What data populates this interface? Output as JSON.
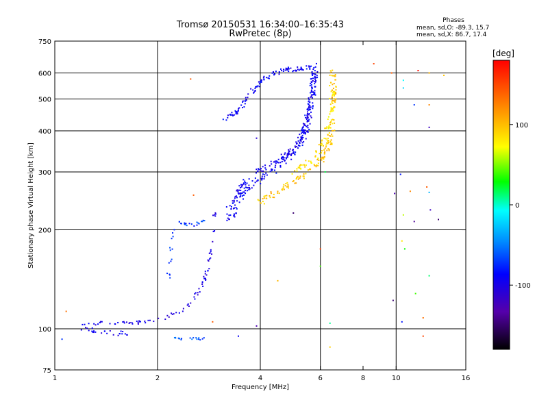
{
  "chart_data": {
    "type": "scatter",
    "title": "Tromsø 20150531 16:34:00–16:35:43",
    "subtitle": "RwPretec (8p)",
    "stats": {
      "heading": "Phases",
      "line_o": "mean, sd,O:  -89.3, 15.7",
      "line_x": "mean, sd,X:  86.7, 17.4"
    },
    "xlabel": "Frequency [MHz]",
    "ylabel": "Stationary phase Virtual Height [km]",
    "x_scale": "log",
    "y_scale": "log",
    "xlim": [
      1,
      16
    ],
    "ylim": [
      75,
      750
    ],
    "x_ticks": [
      1,
      2,
      4,
      6,
      8,
      10,
      16
    ],
    "x_tick_labels": [
      "1",
      "2",
      "4",
      "6",
      "8",
      "10",
      "16"
    ],
    "x_gridlines": [
      2,
      4,
      6,
      10
    ],
    "y_ticks": [
      75,
      100,
      200,
      300,
      400,
      500,
      600,
      750
    ],
    "y_tick_labels": [
      "75",
      "100",
      "200",
      "300",
      "400",
      "500",
      "600",
      "750"
    ],
    "y_gridlines": [
      100,
      200,
      300,
      400,
      500,
      600
    ],
    "grid": true,
    "colorbar": {
      "label": "[deg]",
      "range": [
        -180,
        180
      ],
      "ticks": [
        100,
        0,
        -100
      ],
      "tick_labels": [
        "100",
        "0",
        "-100"
      ]
    },
    "o_mode": [
      {
        "path": [
          [
            1.15,
            103
          ],
          [
            1.4,
            104
          ],
          [
            1.7,
            104
          ],
          [
            1.95,
            106
          ],
          [
            2.1,
            108
          ],
          [
            2.3,
            112
          ],
          [
            2.5,
            120
          ],
          [
            2.7,
            135
          ],
          [
            2.82,
            155
          ],
          [
            2.9,
            185
          ],
          [
            2.95,
            230
          ]
        ],
        "phase": -100,
        "count": 90,
        "spread": 0.012
      },
      {
        "path": [
          [
            1.2,
            100
          ],
          [
            1.45,
            98
          ],
          [
            1.65,
            96
          ]
        ],
        "phase": -95,
        "count": 25,
        "spread": 0.018
      },
      {
        "path": [
          [
            3.25,
            215
          ],
          [
            3.4,
            245
          ],
          [
            3.8,
            275
          ],
          [
            4.3,
            300
          ],
          [
            4.8,
            330
          ],
          [
            5.2,
            360
          ],
          [
            5.5,
            420
          ],
          [
            5.7,
            520
          ],
          [
            5.75,
            600
          ]
        ],
        "phase": -90,
        "count": 200,
        "spread": 0.025
      },
      {
        "path": [
          [
            3.2,
            230
          ],
          [
            3.5,
            270
          ],
          [
            3.9,
            300
          ],
          [
            4.4,
            320
          ],
          [
            4.9,
            345
          ],
          [
            5.3,
            380
          ],
          [
            5.6,
            460
          ],
          [
            5.78,
            640
          ]
        ],
        "phase": -95,
        "count": 150,
        "spread": 0.018
      },
      {
        "path": [
          [
            3.15,
            430
          ],
          [
            3.5,
            470
          ],
          [
            3.8,
            530
          ],
          [
            4.1,
            580
          ],
          [
            4.6,
            610
          ],
          [
            5.2,
            620
          ],
          [
            5.7,
            625
          ]
        ],
        "phase": -90,
        "count": 110,
        "spread": 0.015
      },
      {
        "path": [
          [
            2.3,
            210
          ],
          [
            2.55,
            205
          ],
          [
            2.75,
            215
          ]
        ],
        "phase": -70,
        "count": 20,
        "spread": 0.012
      },
      {
        "path": [
          [
            2.2,
            94
          ],
          [
            2.45,
            93
          ],
          [
            2.75,
            93
          ]
        ],
        "phase": -60,
        "count": 18,
        "spread": 0.01
      },
      {
        "path": [
          [
            2.15,
            140
          ],
          [
            2.2,
            175
          ],
          [
            2.25,
            200
          ]
        ],
        "phase": -65,
        "count": 14,
        "spread": 0.015
      }
    ],
    "x_mode": [
      {
        "path": [
          [
            3.95,
            240
          ],
          [
            4.3,
            255
          ],
          [
            4.7,
            270
          ],
          [
            5.1,
            285
          ],
          [
            5.5,
            300
          ],
          [
            5.9,
            320
          ],
          [
            6.2,
            340
          ],
          [
            6.4,
            370
          ],
          [
            6.5,
            420
          ],
          [
            6.55,
            480
          ],
          [
            6.55,
            560
          ],
          [
            6.5,
            620
          ]
        ],
        "phase": 95,
        "count": 160,
        "spread": 0.02
      },
      {
        "path": [
          [
            5.0,
            300
          ],
          [
            5.5,
            320
          ],
          [
            5.9,
            340
          ],
          [
            6.2,
            380
          ],
          [
            6.45,
            440
          ],
          [
            6.5,
            540
          ]
        ],
        "phase": 80,
        "count": 80,
        "spread": 0.02
      }
    ],
    "scattered_points": [
      {
        "x": 8.6,
        "y": 640,
        "phase": 150
      },
      {
        "x": 9.7,
        "y": 600,
        "phase": 140
      },
      {
        "x": 11.6,
        "y": 610,
        "phase": 175
      },
      {
        "x": 12.5,
        "y": 600,
        "phase": 100
      },
      {
        "x": 13.8,
        "y": 590,
        "phase": 95
      },
      {
        "x": 2.5,
        "y": 575,
        "phase": 140
      },
      {
        "x": 10.5,
        "y": 570,
        "phase": -5
      },
      {
        "x": 10.5,
        "y": 540,
        "phase": -20
      },
      {
        "x": 11.3,
        "y": 480,
        "phase": -70
      },
      {
        "x": 12.5,
        "y": 480,
        "phase": 120
      },
      {
        "x": 12.5,
        "y": 410,
        "phase": -120
      },
      {
        "x": 10.3,
        "y": 295,
        "phase": -80
      },
      {
        "x": 12.3,
        "y": 270,
        "phase": 140
      },
      {
        "x": 11.0,
        "y": 262,
        "phase": 120
      },
      {
        "x": 12.5,
        "y": 260,
        "phase": -30
      },
      {
        "x": 9.9,
        "y": 258,
        "phase": -130
      },
      {
        "x": 12.6,
        "y": 230,
        "phase": -120
      },
      {
        "x": 13.3,
        "y": 215,
        "phase": -150
      },
      {
        "x": 11.3,
        "y": 212,
        "phase": -140
      },
      {
        "x": 10.5,
        "y": 222,
        "phase": 60
      },
      {
        "x": 10.4,
        "y": 185,
        "phase": 80
      },
      {
        "x": 10.6,
        "y": 175,
        "phase": 30
      },
      {
        "x": 12.5,
        "y": 145,
        "phase": 15
      },
      {
        "x": 11.4,
        "y": 128,
        "phase": 40
      },
      {
        "x": 9.8,
        "y": 122,
        "phase": -150
      },
      {
        "x": 12.0,
        "y": 108,
        "phase": 130
      },
      {
        "x": 10.4,
        "y": 105,
        "phase": -80
      },
      {
        "x": 12.0,
        "y": 95,
        "phase": 150
      },
      {
        "x": 6.4,
        "y": 104,
        "phase": 10
      },
      {
        "x": 6.4,
        "y": 88,
        "phase": 90
      },
      {
        "x": 4.5,
        "y": 140,
        "phase": 100
      },
      {
        "x": 6.0,
        "y": 175,
        "phase": 150
      },
      {
        "x": 6.0,
        "y": 155,
        "phase": 40
      },
      {
        "x": 5.0,
        "y": 225,
        "phase": -150
      },
      {
        "x": 6.2,
        "y": 300,
        "phase": 20
      },
      {
        "x": 3.9,
        "y": 102,
        "phase": -130
      },
      {
        "x": 3.45,
        "y": 95,
        "phase": -90
      },
      {
        "x": 1.08,
        "y": 113,
        "phase": 130
      },
      {
        "x": 2.9,
        "y": 105,
        "phase": 140
      },
      {
        "x": 2.55,
        "y": 255,
        "phase": 140
      },
      {
        "x": 3.9,
        "y": 380,
        "phase": -110
      },
      {
        "x": 1.05,
        "y": 93,
        "phase": -70
      }
    ]
  }
}
